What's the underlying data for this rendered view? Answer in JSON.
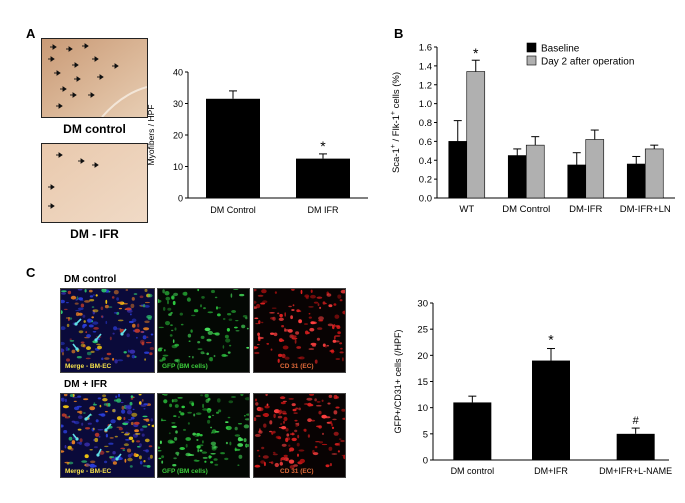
{
  "panels": {
    "a": "A",
    "b": "B",
    "c": "C"
  },
  "panel_a": {
    "img_top_caption": "DM control",
    "img_bottom_caption": "DM - IFR",
    "colors": {
      "tissue_top": "#d9b595",
      "tissue_bottom": "#ecd0b8",
      "bar": "#000000"
    }
  },
  "panel_c": {
    "row1_title": "DM control",
    "row2_title": "DM + IFR",
    "merge_caption": "Merge - BM-EC",
    "gfp_caption": "GFP (BM cells)",
    "cd31_caption": "CD 31 (EC)",
    "colors": {
      "merge_caption": "#f5e14b",
      "gfp_caption": "#3ccc3c",
      "cd31_caption": "#e06a3a",
      "arrow": "#5fe0e8"
    }
  },
  "chart_data": [
    {
      "id": "A",
      "type": "bar",
      "categories": [
        "DM Control",
        "DM IFR"
      ],
      "values": [
        31.5,
        12.5
      ],
      "errors": [
        2.5,
        1.5
      ],
      "annotations": [
        "",
        "*"
      ],
      "title": "",
      "xlabel": "",
      "ylabel": "Myofibers / HPF",
      "ylim": [
        0,
        40
      ],
      "yticks": [
        "0",
        "10",
        "20",
        "30",
        "40"
      ],
      "grid": false
    },
    {
      "id": "B",
      "type": "bar",
      "categories": [
        "WT",
        "DM Control",
        "DM-IFR",
        "DM-IFR+LN"
      ],
      "series": [
        {
          "name": "Baseline",
          "values": [
            0.6,
            0.45,
            0.35,
            0.36
          ],
          "errors": [
            0.22,
            0.07,
            0.13,
            0.08
          ],
          "color": "#000000"
        },
        {
          "name": "Day 2 after operation",
          "values": [
            1.34,
            0.56,
            0.62,
            0.52
          ],
          "errors": [
            0.12,
            0.09,
            0.1,
            0.04
          ],
          "color": "#b0b0b0"
        }
      ],
      "annotations": [
        "*",
        "",
        "",
        ""
      ],
      "title": "",
      "xlabel": "",
      "ylabel": "Sca-1+ / Flk-1+ cells (%)",
      "ylabel_parts": {
        "a": "Sca-1",
        "b": "+",
        "c": " / Flk-1",
        "d": "+",
        "e": " cells (%)"
      },
      "ylim": [
        0,
        1.6
      ],
      "yticks": [
        "0.0",
        "0.2",
        "0.4",
        "0.6",
        "0.8",
        "1.0",
        "1.2",
        "1.4",
        "1.6"
      ],
      "legend_position": "top-right",
      "grid": false
    },
    {
      "id": "C",
      "type": "bar",
      "categories": [
        "DM control",
        "DM+IFR",
        "DM+IFR+L-NAME"
      ],
      "values": [
        11,
        19,
        5
      ],
      "errors": [
        1.2,
        2.3,
        1.1
      ],
      "annotations": [
        "",
        "*",
        "#"
      ],
      "title": "",
      "xlabel": "",
      "ylabel": "GFP+/CD31+ cells (/HPF)",
      "ylim": [
        0,
        30
      ],
      "yticks": [
        "0",
        "5",
        "10",
        "15",
        "20",
        "25",
        "30"
      ],
      "grid": false
    }
  ]
}
